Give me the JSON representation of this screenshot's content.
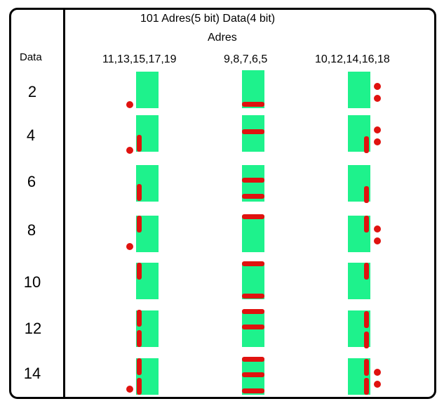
{
  "header": {
    "title": "101  Adres(5 bit) Data(4 bit)",
    "subtitle": "Adres",
    "data_label": "Data"
  },
  "columns": [
    {
      "label": "11,13,15,17,19"
    },
    {
      "label": "9,8,7,6,5"
    },
    {
      "label": "10,12,14,16,18"
    }
  ],
  "rows": [
    {
      "label": "2"
    },
    {
      "label": "4"
    },
    {
      "label": "6"
    },
    {
      "label": "8"
    },
    {
      "label": "10"
    },
    {
      "label": "12"
    },
    {
      "label": "14"
    }
  ],
  "colors": {
    "cell": "#1EF28C",
    "segment": "#E0120F",
    "border": "#000000"
  }
}
